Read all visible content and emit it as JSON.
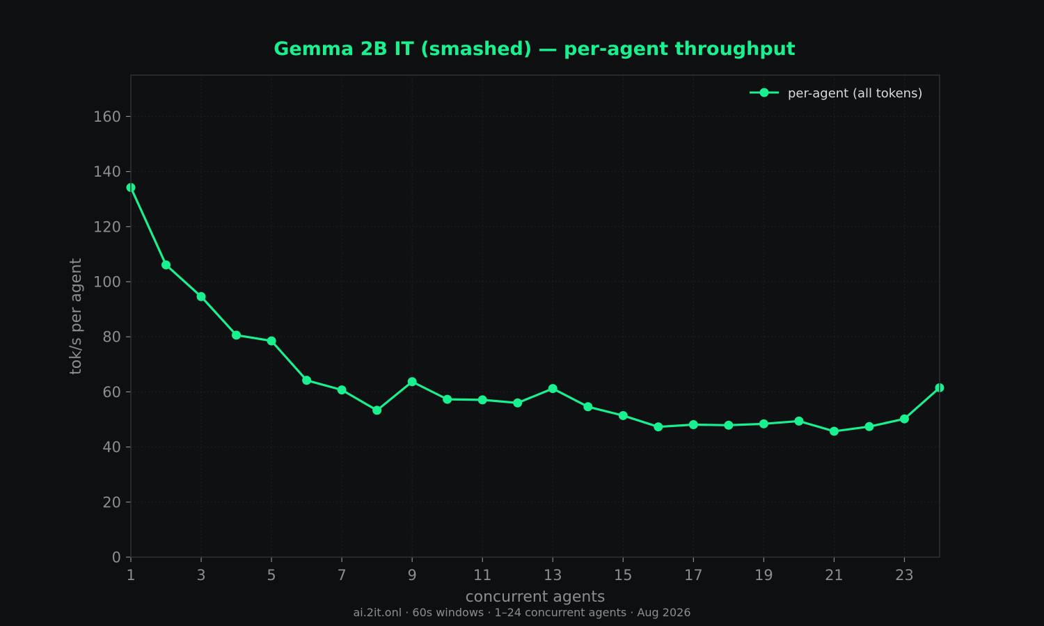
{
  "colors": {
    "background": "#0e0f11",
    "plot_background": "#0f1012",
    "accent": "#19f08f",
    "axis_text": "#8a8d92",
    "spine": "#2e3135",
    "grid": "#1f2225",
    "legend_text": "#d8dadc",
    "footer_text": "#8a8d92"
  },
  "footer": "ai.2it.onl · 60s windows · 1–24 concurrent agents · Aug 2026",
  "chart_data": {
    "type": "line",
    "title": "Gemma 2B IT (smashed) — per-agent throughput",
    "xlabel": "concurrent agents",
    "ylabel": "tok/s per agent",
    "xlim": [
      1,
      24
    ],
    "ylim": [
      0,
      175
    ],
    "x_ticks": [
      1,
      3,
      5,
      7,
      9,
      11,
      13,
      15,
      17,
      19,
      21,
      23
    ],
    "y_ticks": [
      0,
      20,
      40,
      60,
      80,
      100,
      120,
      140,
      160
    ],
    "grid": true,
    "legend_position": "top-right",
    "series": [
      {
        "name": "per-agent (all tokens)",
        "marker": "circle",
        "x": [
          1,
          2,
          3,
          4,
          5,
          6,
          7,
          8,
          9,
          10,
          11,
          12,
          13,
          14,
          15,
          16,
          17,
          18,
          19,
          20,
          21,
          22,
          23,
          24
        ],
        "y": [
          134.2,
          106.1,
          94.6,
          80.6,
          78.5,
          64.2,
          60.7,
          53.3,
          63.7,
          57.3,
          57.1,
          56.0,
          61.2,
          54.6,
          51.4,
          47.3,
          48.1,
          47.9,
          48.4,
          49.4,
          45.7,
          47.4,
          50.2,
          61.5
        ]
      }
    ]
  }
}
